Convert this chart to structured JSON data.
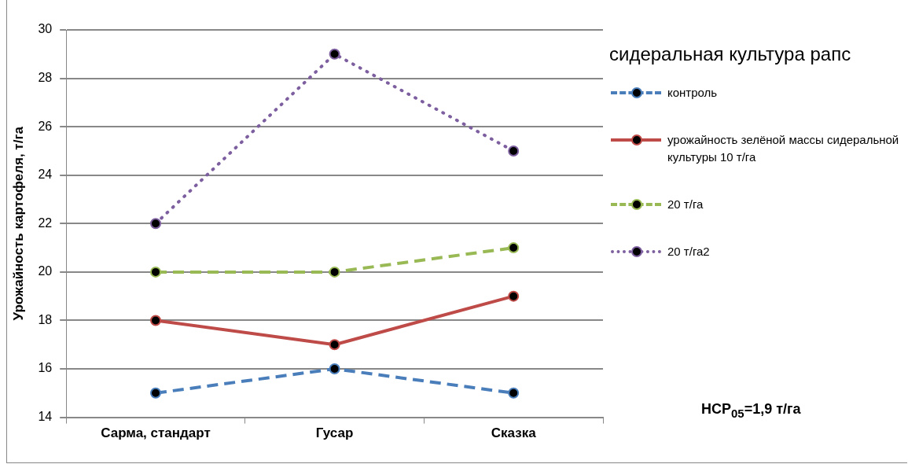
{
  "chart_data": {
    "type": "line",
    "ylabel": "Урожайность картофеля, т/га",
    "legend_title": "сидеральная культура рапс",
    "categories": [
      "Сарма, стандарт",
      "Гусар",
      "Сказка"
    ],
    "series": [
      {
        "name": "контроль",
        "color": "#4a7ebb",
        "line_style": "dashed",
        "values": [
          15,
          16,
          15
        ]
      },
      {
        "name": "урожайность зелёной массы сидеральной культуры 10 т/га",
        "color": "#be4b48",
        "line_style": "solid",
        "values": [
          18,
          17,
          19
        ]
      },
      {
        "name": "20 т/га",
        "color": "#98b954",
        "line_style": "dashed",
        "values": [
          20,
          20,
          21
        ]
      },
      {
        "name": "20 т/га2",
        "color": "#7d5fa0",
        "line_style": "dotted",
        "values": [
          22,
          29,
          25
        ]
      }
    ],
    "ylim": [
      14,
      30
    ],
    "yticks": [
      14,
      16,
      18,
      20,
      22,
      24,
      26,
      28,
      30
    ],
    "grid": "y",
    "legend": "right",
    "marker": "circle",
    "annotations": [
      "НСР$_{05}$=1,9 т/га"
    ]
  }
}
